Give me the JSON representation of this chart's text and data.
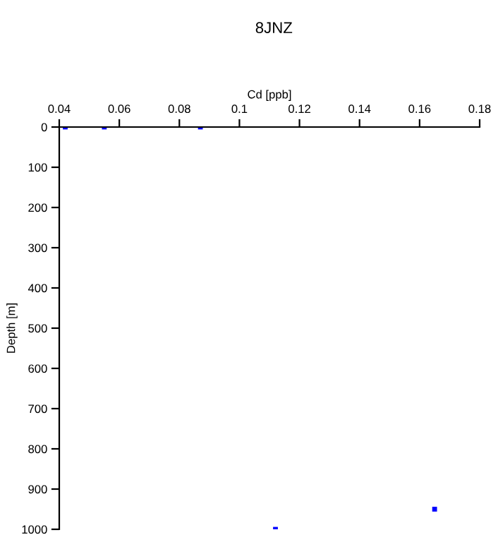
{
  "chart_data": {
    "type": "scatter",
    "title": "8JNZ",
    "xlabel": "Cd [ppb]",
    "ylabel": "Depth [m]",
    "x": [
      0.042,
      0.055,
      0.087,
      0.112,
      0.165
    ],
    "series": [
      {
        "color": "#0000ff",
        "values": [
          0,
          0,
          0,
          1000,
          950
        ]
      }
    ],
    "xlim": [
      0.04,
      0.18
    ],
    "xticks": [
      0.04,
      0.06,
      0.08,
      {
        "value": 0.1,
        "label": "0.1"
      },
      0.12,
      0.14,
      0.16,
      0.18
    ],
    "ylim": [
      1000,
      0
    ],
    "yticks": [
      0,
      100,
      200,
      300,
      400,
      500,
      600,
      700,
      800,
      900,
      1000
    ],
    "marker": "square",
    "grid": false,
    "legend": false
  }
}
